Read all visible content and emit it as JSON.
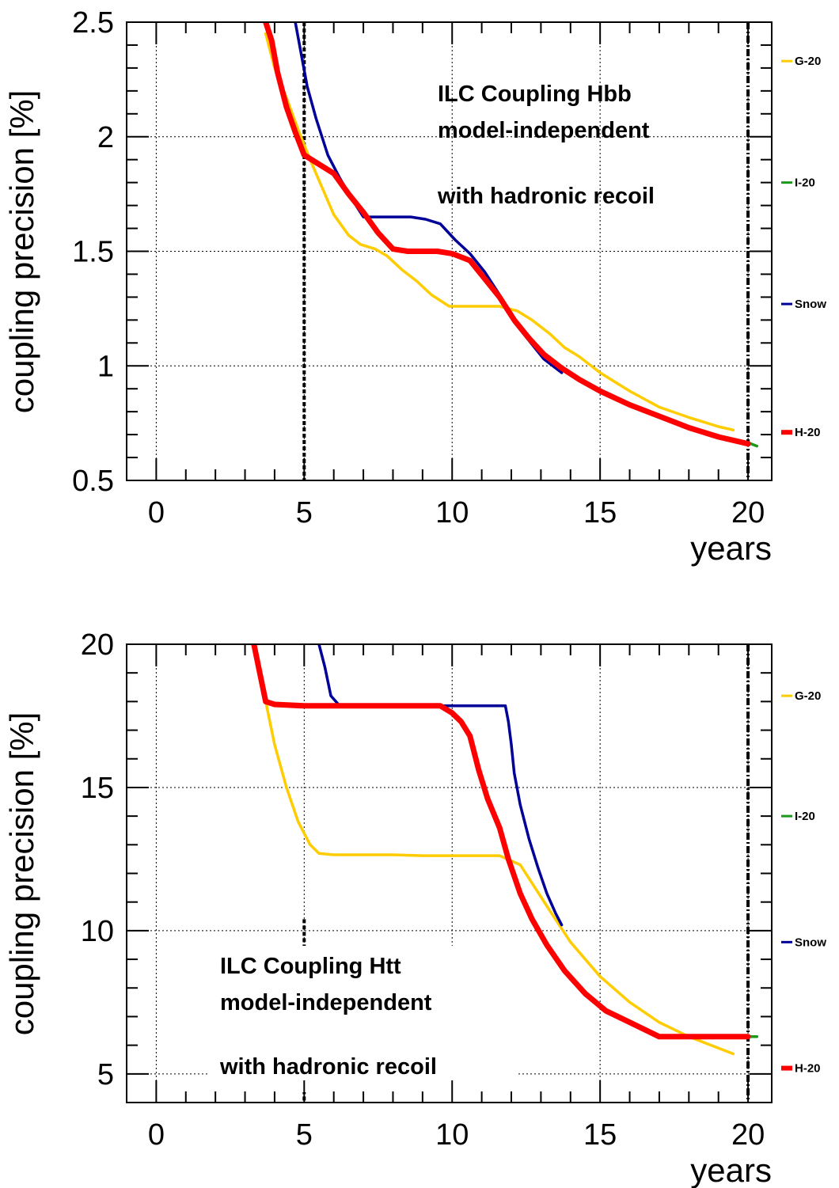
{
  "chart_data": [
    {
      "type": "line",
      "title": "",
      "xlabel": "years",
      "ylabel": "coupling precision [%]",
      "xlim": [
        -1,
        20.8
      ],
      "ylim": [
        0.5,
        2.5
      ],
      "xticks": [
        0,
        5,
        10,
        15,
        20
      ],
      "xtick_labels": [
        "0",
        "5",
        "10",
        "15",
        "20"
      ],
      "yticks": [
        0.5,
        1,
        1.5,
        2,
        2.5
      ],
      "ytick_labels": [
        "0.5",
        "1",
        "1.5",
        "2",
        "2.5"
      ],
      "grid": true,
      "vlines": [
        5,
        20
      ],
      "annotations": [
        "ILC Coupling Hbb",
        "model-independent",
        "with hadronic recoil"
      ],
      "legend_placement": "right-outside",
      "legend": [
        {
          "name": "G-20",
          "color": "#ffcc00",
          "y": 2.33
        },
        {
          "name": "I-20",
          "color": "#1a9a1a",
          "y": 1.8
        },
        {
          "name": "Snow",
          "color": "#000099",
          "y": 1.27
        },
        {
          "name": "H-20",
          "color": "#ff0000",
          "y": 0.71
        }
      ],
      "series": [
        {
          "name": "G-20",
          "color": "#ffcc00",
          "width": 3.5,
          "x": [
            3.7,
            4.0,
            4.4,
            4.8,
            5.2,
            5.6,
            6.0,
            6.5,
            6.9,
            7.4,
            7.8,
            8.3,
            8.8,
            9.3,
            9.9,
            10.5,
            11.0,
            11.6,
            12.2,
            12.7,
            13.3,
            13.8,
            14.3,
            15.0,
            16.0,
            17.0,
            18.0,
            19.0,
            19.5
          ],
          "y": [
            2.45,
            2.3,
            2.17,
            2.03,
            1.9,
            1.78,
            1.66,
            1.57,
            1.53,
            1.51,
            1.48,
            1.42,
            1.37,
            1.31,
            1.26,
            1.26,
            1.26,
            1.26,
            1.24,
            1.2,
            1.14,
            1.08,
            1.04,
            0.97,
            0.89,
            0.82,
            0.775,
            0.735,
            0.72
          ]
        },
        {
          "name": "I-20",
          "color": "#1a9a1a",
          "width": 3.5,
          "x": [
            20.0,
            20.3
          ],
          "y": [
            0.665,
            0.65
          ]
        },
        {
          "name": "Snow",
          "color": "#000099",
          "width": 3.5,
          "x": [
            4.7,
            4.9,
            5.1,
            5.4,
            5.8,
            6.2,
            6.7,
            7.0,
            7.5,
            8.0,
            8.6,
            9.1,
            9.6,
            10.1,
            10.6,
            11.1,
            11.6,
            12.1,
            12.6,
            13.1,
            13.7
          ],
          "y": [
            2.5,
            2.36,
            2.22,
            2.08,
            1.92,
            1.82,
            1.71,
            1.65,
            1.65,
            1.65,
            1.65,
            1.64,
            1.62,
            1.55,
            1.49,
            1.41,
            1.31,
            1.19,
            1.11,
            1.03,
            0.97
          ]
        },
        {
          "name": "H-20",
          "color": "#ff0000",
          "width": 7,
          "x": [
            3.7,
            3.9,
            4.1,
            4.4,
            4.7,
            5.0,
            5.5,
            6.0,
            6.5,
            7.0,
            7.5,
            8.0,
            8.5,
            9.0,
            9.5,
            10.0,
            10.6,
            11.1,
            11.6,
            12.1,
            12.6,
            13.1,
            13.7,
            14.3,
            15.0,
            16.0,
            17.0,
            18.0,
            19.0,
            20.0
          ],
          "y": [
            2.5,
            2.42,
            2.28,
            2.13,
            2.02,
            1.92,
            1.88,
            1.84,
            1.75,
            1.67,
            1.58,
            1.51,
            1.5,
            1.5,
            1.5,
            1.49,
            1.46,
            1.38,
            1.3,
            1.2,
            1.12,
            1.05,
            0.99,
            0.94,
            0.89,
            0.83,
            0.78,
            0.73,
            0.69,
            0.66
          ]
        }
      ]
    },
    {
      "type": "line",
      "title": "",
      "xlabel": "years",
      "ylabel": "coupling precision [%]",
      "xlim": [
        -1,
        20.8
      ],
      "ylim": [
        4,
        20
      ],
      "xticks": [
        0,
        5,
        10,
        15,
        20
      ],
      "xtick_labels": [
        "0",
        "5",
        "10",
        "15",
        "20"
      ],
      "yticks": [
        5,
        10,
        15,
        20
      ],
      "ytick_labels": [
        "5",
        "10",
        "15",
        "20"
      ],
      "grid": true,
      "vlines": [
        5,
        20
      ],
      "annotations": [
        "ILC Coupling Htt",
        "model-independent",
        "with hadronic recoil"
      ],
      "legend_placement": "right-outside",
      "legend": [
        {
          "name": "G-20",
          "color": "#ffcc00",
          "y": 18.2
        },
        {
          "name": "I-20",
          "color": "#1a9a1a",
          "y": 14.0
        },
        {
          "name": "Snow",
          "color": "#000099",
          "y": 9.6
        },
        {
          "name": "H-20",
          "color": "#ff0000",
          "y": 5.2
        }
      ],
      "series": [
        {
          "name": "G-20",
          "color": "#ffcc00",
          "width": 3.5,
          "x": [
            3.7,
            4.0,
            4.4,
            4.8,
            5.2,
            5.5,
            6.0,
            7.0,
            8.0,
            9.0,
            10.0,
            11.0,
            11.6,
            12.3,
            12.8,
            13.3,
            14.0,
            15.0,
            16.0,
            17.0,
            18.0,
            19.0,
            19.5
          ],
          "y": [
            18.0,
            16.5,
            15.0,
            13.8,
            13.0,
            12.7,
            12.65,
            12.65,
            12.65,
            12.62,
            12.62,
            12.62,
            12.62,
            12.3,
            11.5,
            10.7,
            9.6,
            8.4,
            7.5,
            6.8,
            6.3,
            5.9,
            5.7
          ]
        },
        {
          "name": "I-20",
          "color": "#1a9a1a",
          "width": 3.5,
          "x": [
            20.0,
            20.3
          ],
          "y": [
            6.3,
            6.3
          ]
        },
        {
          "name": "Snow",
          "color": "#000099",
          "width": 3.5,
          "x": [
            5.5,
            5.7,
            5.9,
            6.2,
            7.0,
            8.0,
            9.0,
            10.0,
            11.0,
            11.5,
            11.8,
            11.9,
            12.0,
            12.1,
            12.3,
            12.6,
            12.9,
            13.2,
            13.5,
            13.7
          ],
          "y": [
            20.0,
            19.2,
            18.2,
            17.85,
            17.85,
            17.85,
            17.85,
            17.85,
            17.85,
            17.85,
            17.85,
            17.3,
            16.5,
            15.5,
            14.4,
            13.2,
            12.2,
            11.3,
            10.6,
            10.2
          ]
        },
        {
          "name": "H-20",
          "color": "#ff0000",
          "width": 7,
          "x": [
            3.3,
            3.5,
            3.7,
            4.0,
            5.0,
            6.0,
            7.0,
            8.0,
            9.0,
            9.6,
            10.0,
            10.3,
            10.6,
            10.9,
            11.2,
            11.6,
            11.9,
            12.3,
            12.7,
            13.2,
            13.8,
            14.5,
            15.2,
            16.0,
            17.0,
            18.0,
            19.0,
            20.0
          ],
          "y": [
            20.0,
            19.0,
            18.0,
            17.9,
            17.85,
            17.85,
            17.85,
            17.85,
            17.85,
            17.85,
            17.6,
            17.3,
            16.8,
            15.6,
            14.6,
            13.6,
            12.5,
            11.3,
            10.4,
            9.5,
            8.6,
            7.8,
            7.2,
            6.8,
            6.3,
            6.3,
            6.3,
            6.3
          ]
        }
      ]
    }
  ]
}
